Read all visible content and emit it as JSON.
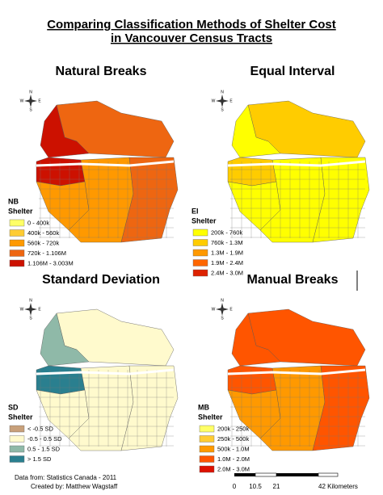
{
  "title": [
    "Comparing Classification Methods of Shelter Cost",
    "in Vancouver Census Tracts"
  ],
  "compass": [
    "N",
    "E",
    "S",
    "W"
  ],
  "panels": [
    {
      "title": "Natural Breaks",
      "legend": {
        "title": "NB",
        "subtitle": "Shelter",
        "items": [
          {
            "label": "0 - 400k",
            "color": "#ffff66"
          },
          {
            "label": "400k - 560k",
            "color": "#ffcc33"
          },
          {
            "label": "560k - 720k",
            "color": "#ff9900"
          },
          {
            "label": "720k - 1.106M",
            "color": "#ee6611"
          },
          {
            "label": "1.106M - 3.003M",
            "color": "#cc1100"
          }
        ]
      }
    },
    {
      "title": "Equal Interval",
      "legend": {
        "title": "EI",
        "subtitle": "Shelter",
        "items": [
          {
            "label": "200k - 760k",
            "color": "#ffff00"
          },
          {
            "label": "760k - 1.3M",
            "color": "#ffcc00"
          },
          {
            "label": "1.3M - 1.9M",
            "color": "#ff9900"
          },
          {
            "label": "1.9M - 2.4M",
            "color": "#ff6600"
          },
          {
            "label": "2.4M - 3.0M",
            "color": "#dd2200"
          }
        ]
      }
    },
    {
      "title": "Standard Deviation",
      "legend": {
        "title": "SD",
        "subtitle": "Shelter",
        "items": [
          {
            "label": "< -0.5 SD",
            "color": "#c8a07a"
          },
          {
            "label": "-0.5 - 0.5 SD",
            "color": "#fffacd"
          },
          {
            "label": "0.5 - 1.5 SD",
            "color": "#8fb9a8"
          },
          {
            "label": "> 1.5 SD",
            "color": "#2a7f8f"
          }
        ]
      }
    },
    {
      "title": "Manual Breaks",
      "legend": {
        "title": "MB",
        "subtitle": "Shelter",
        "items": [
          {
            "label": "200k - 250k",
            "color": "#ffff66"
          },
          {
            "label": "250k - 500k",
            "color": "#ffcc33"
          },
          {
            "label": "500k - 1.0M",
            "color": "#ff9900"
          },
          {
            "label": "1.0M - 2.0M",
            "color": "#ff5500"
          },
          {
            "label": "2.0M - 3.0M",
            "color": "#dd1100"
          }
        ]
      }
    }
  ],
  "footer": {
    "source": "Data from: Statistics Canada - 2011",
    "credit": "Created by: Matthew Wagstaff"
  },
  "scale": {
    "ticks": [
      "0",
      "10.5",
      "21",
      "42 Kilometers"
    ]
  }
}
